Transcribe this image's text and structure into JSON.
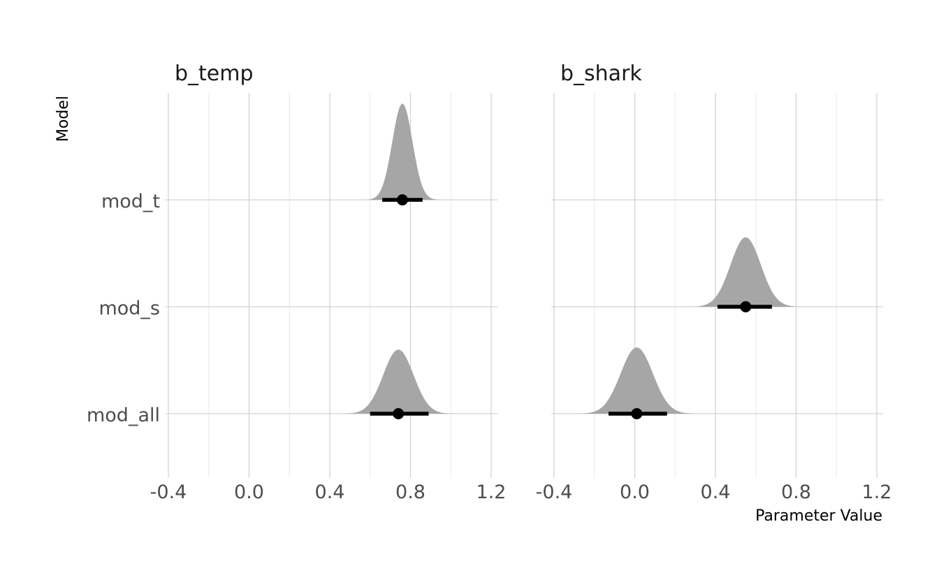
{
  "chart_data": {
    "type": "halfeye",
    "xlabel": "Parameter Value",
    "ylabel": "Model",
    "xlim": [
      -0.4,
      1.22
    ],
    "x_ticks": [
      -0.4,
      0.0,
      0.4,
      0.8,
      1.2
    ],
    "x_tick_labels": [
      "-0.4",
      "0.0",
      "0.4",
      "0.8",
      "1.2"
    ],
    "categories": [
      "mod_t",
      "mod_s",
      "mod_all"
    ],
    "grid": true,
    "panels": [
      {
        "title": "b_temp",
        "estimates": [
          {
            "model": "mod_t",
            "point": 0.76,
            "lower": 0.66,
            "upper": 0.86,
            "sd": 0.05,
            "height": 0.9
          },
          {
            "model": "mod_all",
            "point": 0.74,
            "lower": 0.6,
            "upper": 0.89,
            "sd": 0.075,
            "height": 0.6
          }
        ]
      },
      {
        "title": "b_shark",
        "estimates": [
          {
            "model": "mod_s",
            "point": 0.55,
            "lower": 0.41,
            "upper": 0.68,
            "sd": 0.075,
            "height": 0.65
          },
          {
            "model": "mod_all",
            "point": 0.01,
            "lower": -0.13,
            "upper": 0.16,
            "sd": 0.08,
            "height": 0.62
          }
        ]
      }
    ]
  }
}
